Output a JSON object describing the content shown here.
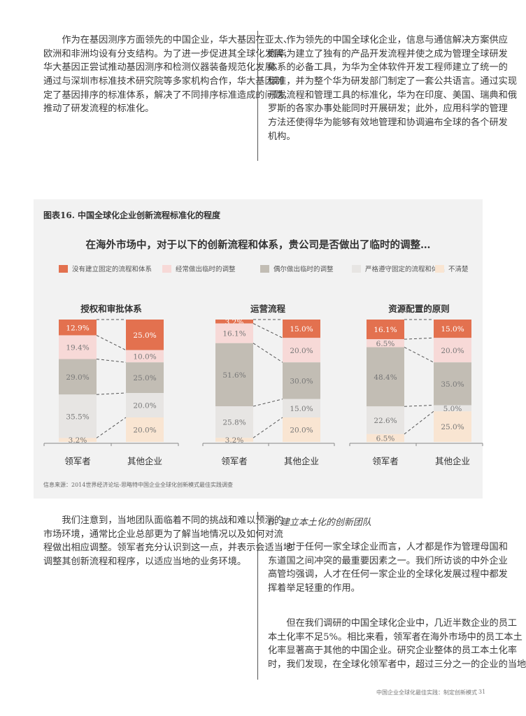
{
  "top_left_paragraph": [
    "作为在基因测序方面领先的中国企业，华大基因在亚太、",
    "欧洲和非洲均设有分支结构。为了进一步促进其全球化发展，",
    "华大基因正尝试推动基因测序和检测仪器装备规范化发展。",
    "通过与深圳市标准技术研究院等多家机构合作，华大基因制",
    "定了基因排序的标准体系，解决了不同排序标准造成的问题，",
    "推动了研发流程的标准化。"
  ],
  "top_right_paragraph": [
    "作为领先的中国全球化企业，信息与通信解决方案供应",
    "商华为建立了独有的产品开发流程并使之成为管理全球研发",
    "体系的必备工具，为华为全体软件开发工程师建立了统一的",
    "标准，并为整个华为研发部门制定了一套公共语言。通过实现",
    "开发流程和管理工具的标准化，华为在印度、美国、瑞典和俄",
    "罗斯的各家办事处能同时开展研发；此外，应用科学的管理",
    "方法还使得华为能够有效地管理和协调遍布全球的各个研发",
    "机构。"
  ],
  "chart_data": {
    "type": "bar",
    "stacked": true,
    "percent": true,
    "title": "图表16. 中国全球化企业创新流程标准化的程度",
    "subtitle": "在海外市场中，对于以下的创新流程和体系，贵公司是否做出了临时的调整…",
    "legend_position": "top",
    "series": [
      {
        "name": "没有建立固定的流程和体系",
        "color": "#e3714f"
      },
      {
        "name": "经常做出临时的调整",
        "color": "#f7d9d7"
      },
      {
        "name": "偶尔做出临时的调整",
        "color": "#c2bdb4"
      },
      {
        "name": "严格遵守固定的流程和体系",
        "color": "#e7e5e3"
      },
      {
        "name": "不清楚",
        "color": "#f9e5d2"
      }
    ],
    "categories": [
      "领军者",
      "其他企业"
    ],
    "groups": [
      {
        "title": "授权和审批体系",
        "bars": [
          {
            "category": "领军者",
            "values": [
              12.9,
              19.4,
              29.0,
              35.5,
              3.2
            ]
          },
          {
            "category": "其他企业",
            "values": [
              25.0,
              10.0,
              25.0,
              20.0,
              20.0
            ]
          }
        ]
      },
      {
        "title": "运营流程",
        "bars": [
          {
            "category": "领军者",
            "values": [
              3.2,
              16.1,
              51.6,
              25.8,
              3.2
            ]
          },
          {
            "category": "其他企业",
            "values": [
              15.0,
              20.0,
              30.0,
              15.0,
              20.0
            ]
          }
        ]
      },
      {
        "title": "资源配置的原则",
        "bars": [
          {
            "category": "领军者",
            "values": [
              16.1,
              6.5,
              48.4,
              22.6,
              6.5
            ]
          },
          {
            "category": "其他企业",
            "values": [
              15.0,
              20.0,
              35.0,
              5.0,
              25.0
            ]
          }
        ]
      }
    ],
    "source": "信息来源：2014世界经济论坛-思略特中国企业全球化创新模式最佳实践调查"
  },
  "bottom_left_paragraph": [
    "我们注意到，当地团队面临着不同的挑战和难以预测的",
    "市场环境，通常比企业总部更为了解当地情况以及如何对流",
    "程做出相应调整。领军者充分认识到这一点，并表示会适当地",
    "调整其创新流程和程序，以适应当地的业务环境。"
  ],
  "section_heading": "B. 建立本土化的创新团队",
  "bottom_right_paragraph_1": [
    "对于任何一家全球企业而言，人才都是作为管理母国和",
    "东道国之间冲突的最重要因素之一。我们所访谈的中外企业",
    "高管均强调，人才在任何一家企业的全球化发展过程中都发",
    "挥着举足轻重的作用。"
  ],
  "bottom_right_paragraph_2": [
    "但在我们调研的中国全球化企业中，几近半数企业的员工",
    "本土化率不足5%。相比来看，领军者在海外市场中的员工本土",
    "化率显著高于其他的中国企业。研究企业整体的员工本土化率",
    "时，我们发现，在全球化领军者中，超过三分之一的企业的当地"
  ],
  "footer": {
    "title": "中国企业全球化最佳实践：制定创新模式",
    "page": "31"
  }
}
